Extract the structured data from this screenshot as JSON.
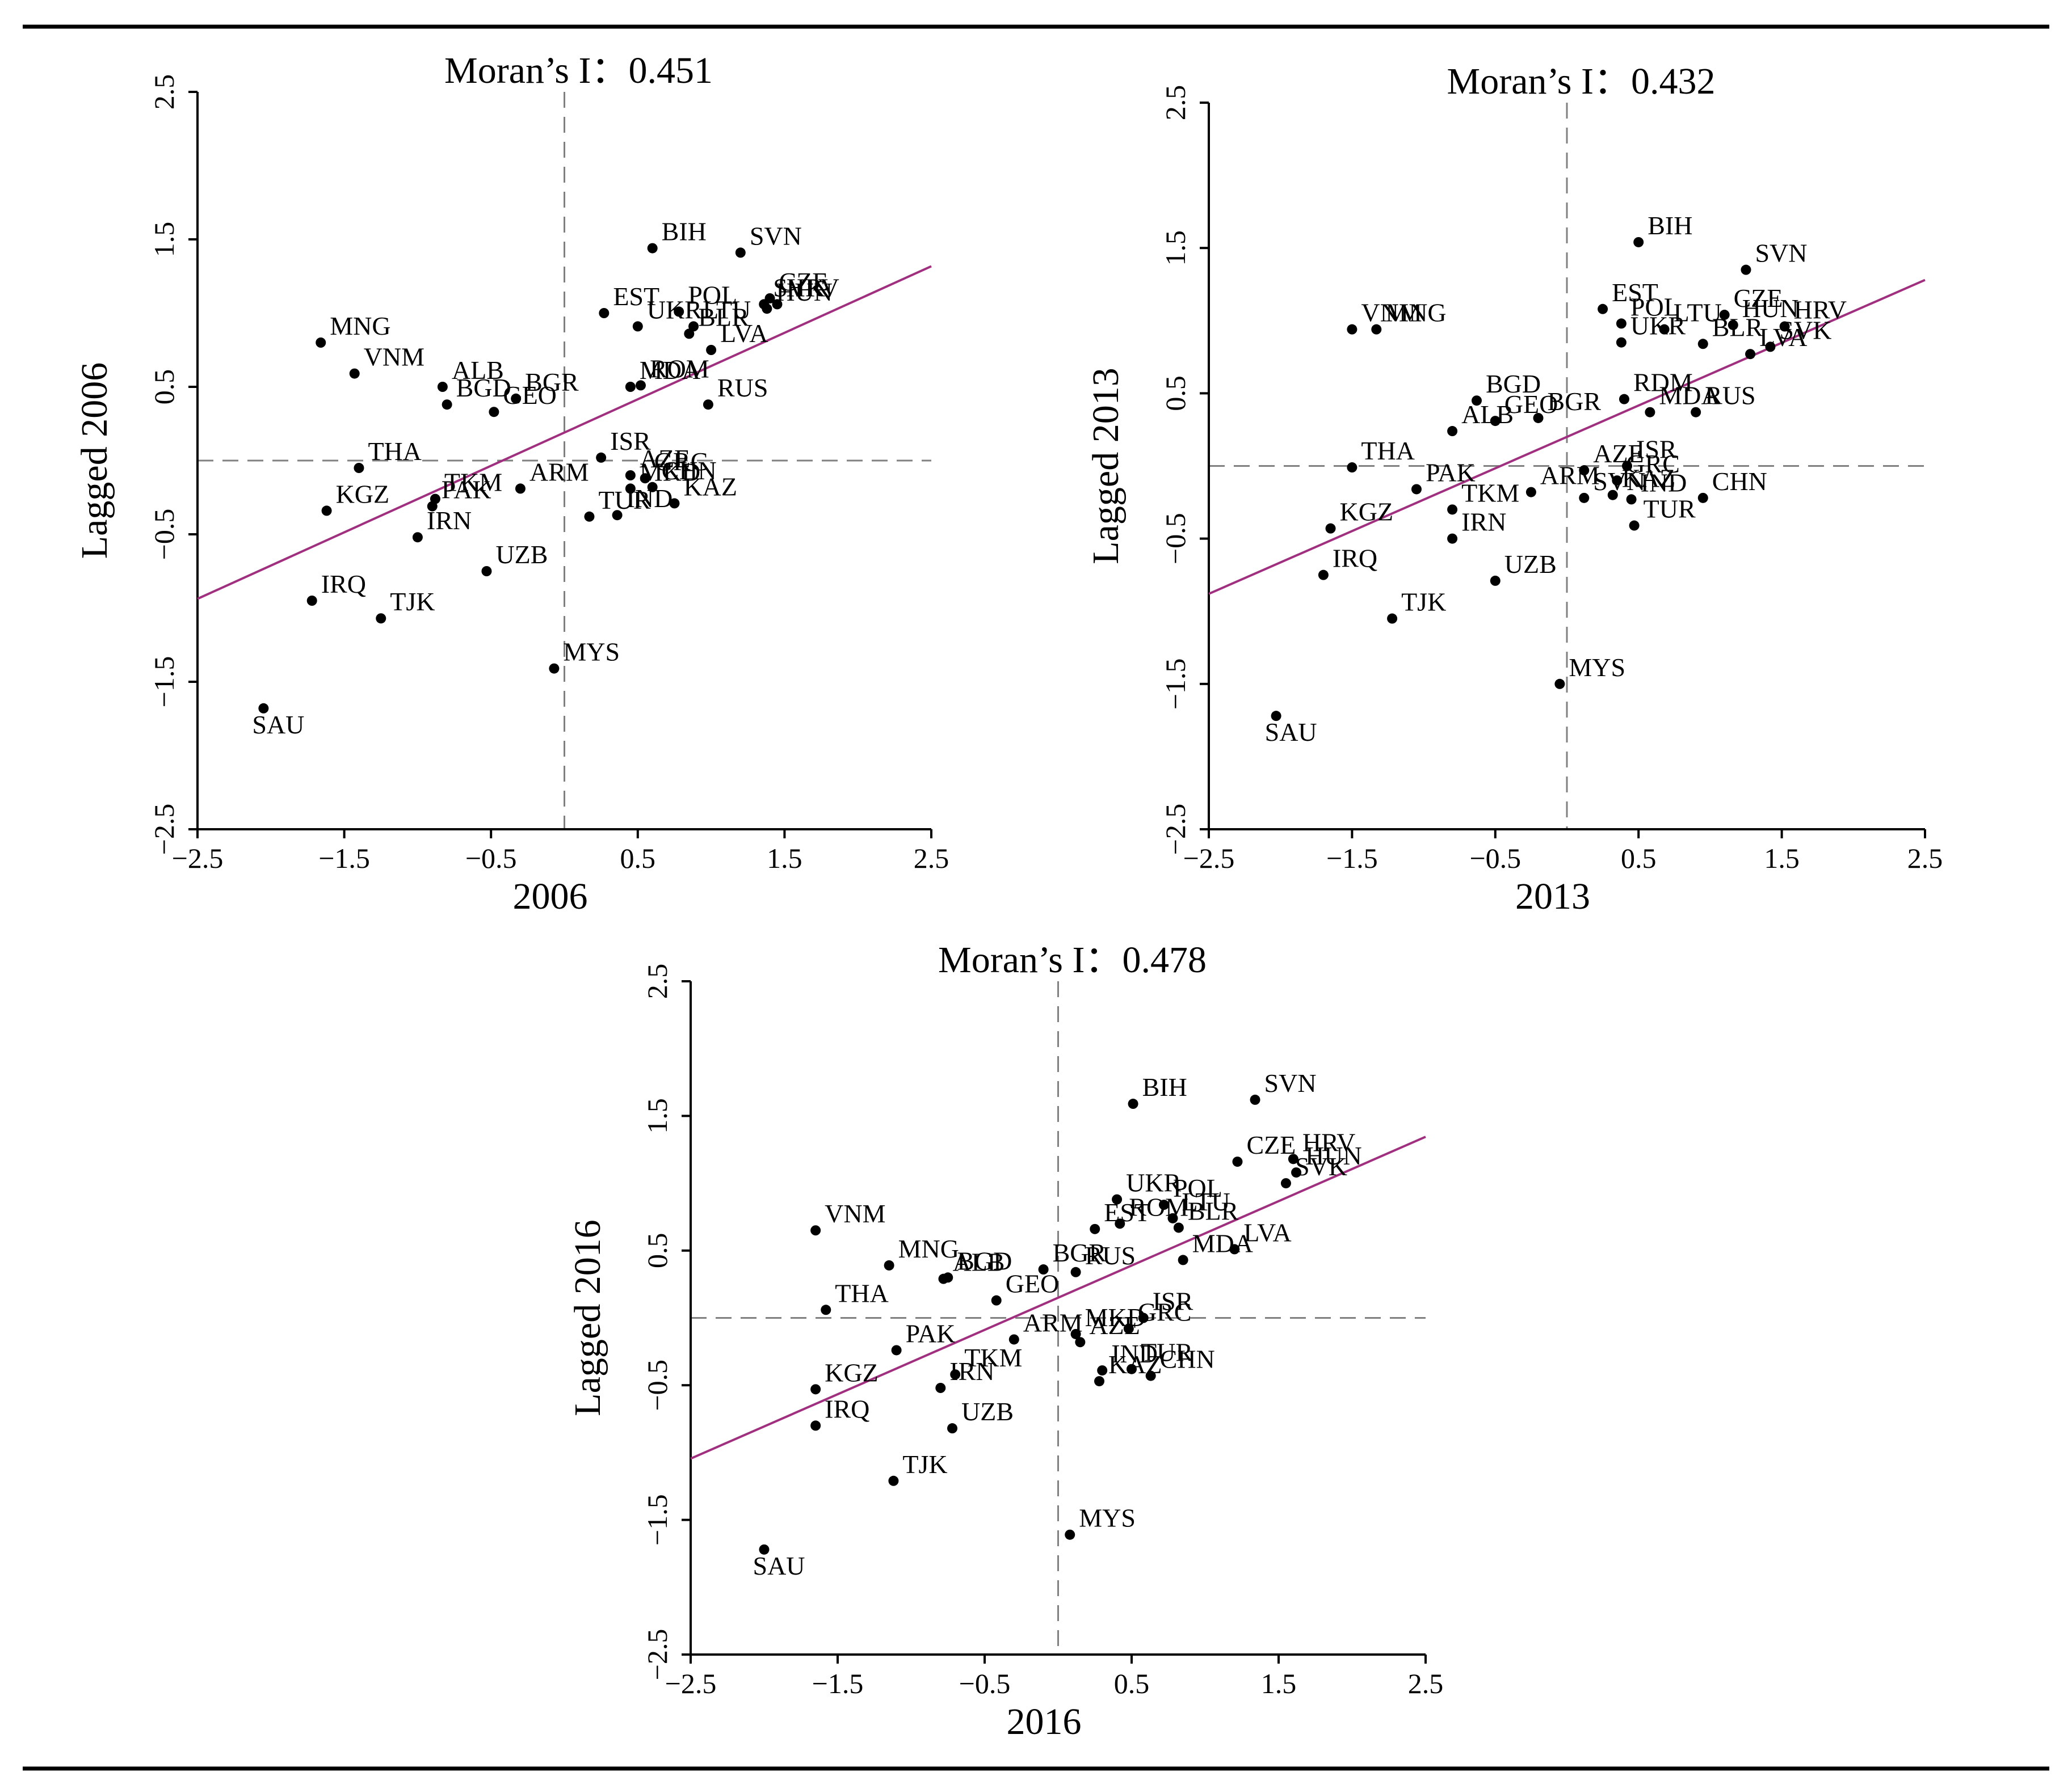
{
  "colors": {
    "axis": "#000000",
    "point": "#000000",
    "fit_line": "#a0307f",
    "mean_line": "#808080",
    "frame_rule": "#000000"
  },
  "chart_data": [
    {
      "type": "scatter",
      "id": "p2006",
      "title": "Moran’s I：0.451",
      "xlabel": "2006",
      "ylabel": "Lagged 2006",
      "xlim": [
        -2.5,
        2.5
      ],
      "ylim": [
        -2.5,
        2.5
      ],
      "xticks": [
        -2.5,
        -1.5,
        -0.5,
        0.5,
        1.5,
        2.5
      ],
      "yticks": [
        -2.5,
        -1.5,
        -0.5,
        0.5,
        1.5,
        2.5
      ],
      "xtick_labels": [
        "−2.5",
        "−1.5",
        "−0.5",
        "0.5",
        "1.5",
        "2.5"
      ],
      "ytick_labels": [
        "−2.5",
        "−1.5",
        "−0.5",
        "0.5",
        "1.5",
        "2.5"
      ],
      "fit_line": {
        "slope": 0.451,
        "intercept": 0.19
      },
      "points": [
        {
          "label": "BIH",
          "x": 0.6,
          "y": 1.44
        },
        {
          "label": "SVN",
          "x": 1.2,
          "y": 1.41
        },
        {
          "label": "POL",
          "x": 0.78,
          "y": 1.01
        },
        {
          "label": "SVK",
          "x": 1.36,
          "y": 1.06
        },
        {
          "label": "CZE",
          "x": 1.4,
          "y": 1.1
        },
        {
          "label": "UKR",
          "x": 0.5,
          "y": 0.91
        },
        {
          "label": "EST",
          "x": 0.27,
          "y": 1.0
        },
        {
          "label": "LTU",
          "x": 0.88,
          "y": 0.91
        },
        {
          "label": "HRV",
          "x": 1.45,
          "y": 1.06
        },
        {
          "label": "HUN",
          "x": 1.38,
          "y": 1.03
        },
        {
          "label": "BLR",
          "x": 0.85,
          "y": 0.86
        },
        {
          "label": "LVA",
          "x": 1.0,
          "y": 0.75
        },
        {
          "label": "MDA",
          "x": 0.45,
          "y": 0.5
        },
        {
          "label": "ROM",
          "x": 0.52,
          "y": 0.51
        },
        {
          "label": "RUS",
          "x": 0.98,
          "y": 0.38
        },
        {
          "label": "MNG",
          "x": -1.66,
          "y": 0.8
        },
        {
          "label": "VNM",
          "x": -1.43,
          "y": 0.59
        },
        {
          "label": "ALB",
          "x": -0.83,
          "y": 0.5
        },
        {
          "label": "BGR",
          "x": -0.33,
          "y": 0.42
        },
        {
          "label": "BGD",
          "x": -0.8,
          "y": 0.38
        },
        {
          "label": "GEO",
          "x": -0.48,
          "y": 0.33
        },
        {
          "label": "ISR",
          "x": 0.25,
          "y": 0.02
        },
        {
          "label": "AZE",
          "x": 0.45,
          "y": -0.1
        },
        {
          "label": "GRC",
          "x": 0.55,
          "y": -0.12
        },
        {
          "label": "MKD",
          "x": 0.45,
          "y": -0.19
        },
        {
          "label": "CHN",
          "x": 0.6,
          "y": -0.18
        },
        {
          "label": "KAZ",
          "x": 0.75,
          "y": -0.29
        },
        {
          "label": "THA",
          "x": -1.4,
          "y": -0.05
        },
        {
          "label": "TKM",
          "x": -0.88,
          "y": -0.26
        },
        {
          "label": "PAK",
          "x": -0.9,
          "y": -0.31
        },
        {
          "label": "ARM",
          "x": -0.3,
          "y": -0.19
        },
        {
          "label": "TUR",
          "x": 0.17,
          "y": -0.38
        },
        {
          "label": "IND",
          "x": 0.36,
          "y": -0.37
        },
        {
          "label": "KGZ",
          "x": -1.62,
          "y": -0.34
        },
        {
          "label": "IRN",
          "x": -1.0,
          "y": -0.52
        },
        {
          "label": "UZB",
          "x": -0.53,
          "y": -0.75
        },
        {
          "label": "IRQ",
          "x": -1.72,
          "y": -0.95
        },
        {
          "label": "TJK",
          "x": -1.25,
          "y": -1.07
        },
        {
          "label": "MYS",
          "x": -0.07,
          "y": -1.41
        },
        {
          "label": "SAU",
          "x": -2.05,
          "y": -1.68
        }
      ]
    },
    {
      "type": "scatter",
      "id": "p2013",
      "title": "Moran’s I：0.432",
      "xlabel": "2013",
      "ylabel": "Lagged 2013",
      "xlim": [
        -2.5,
        2.5
      ],
      "ylim": [
        -2.5,
        2.5
      ],
      "xticks": [
        -2.5,
        -1.5,
        -0.5,
        0.5,
        1.5,
        2.5
      ],
      "yticks": [
        -2.5,
        -1.5,
        -0.5,
        0.5,
        1.5,
        2.5
      ],
      "xtick_labels": [
        "−2.5",
        "−1.5",
        "−0.5",
        "0.5",
        "1.5",
        "2.5"
      ],
      "ytick_labels": [
        "−2.5",
        "−1.5",
        "−0.5",
        "0.5",
        "1.5",
        "2.5"
      ],
      "fit_line": {
        "slope": 0.432,
        "intercept": 0.2
      },
      "points": [
        {
          "label": "BIH",
          "x": 0.5,
          "y": 1.54
        },
        {
          "label": "SVN",
          "x": 1.25,
          "y": 1.35
        },
        {
          "label": "CZE",
          "x": 1.1,
          "y": 1.04
        },
        {
          "label": "EST",
          "x": 0.25,
          "y": 1.08
        },
        {
          "label": "LTU",
          "x": 0.68,
          "y": 0.94
        },
        {
          "label": "POL",
          "x": 0.38,
          "y": 0.98
        },
        {
          "label": "HUN",
          "x": 1.16,
          "y": 0.97
        },
        {
          "label": "HRV",
          "x": 1.52,
          "y": 0.96
        },
        {
          "label": "SVK",
          "x": 1.42,
          "y": 0.82
        },
        {
          "label": "LVA",
          "x": 1.28,
          "y": 0.77
        },
        {
          "label": "BLR",
          "x": 0.95,
          "y": 0.84
        },
        {
          "label": "UKR",
          "x": 0.38,
          "y": 0.85
        },
        {
          "label": "VNM",
          "x": -1.5,
          "y": 0.94
        },
        {
          "label": "MNG",
          "x": -1.33,
          "y": 0.94
        },
        {
          "label": "RDM",
          "x": 0.4,
          "y": 0.46
        },
        {
          "label": "MDA",
          "x": 0.58,
          "y": 0.37
        },
        {
          "label": "RUS",
          "x": 0.9,
          "y": 0.37
        },
        {
          "label": "BGD",
          "x": -0.63,
          "y": 0.45
        },
        {
          "label": "BGR",
          "x": -0.2,
          "y": 0.33
        },
        {
          "label": "ALB",
          "x": -0.8,
          "y": 0.24
        },
        {
          "label": "GEO",
          "x": -0.5,
          "y": 0.31
        },
        {
          "label": "AZE",
          "x": 0.12,
          "y": -0.03
        },
        {
          "label": "ISR",
          "x": 0.42,
          "y": 0.0
        },
        {
          "label": "GRC",
          "x": 0.35,
          "y": -0.1
        },
        {
          "label": "IND",
          "x": 0.45,
          "y": -0.23
        },
        {
          "label": "CHN",
          "x": 0.95,
          "y": -0.22
        },
        {
          "label": "SVN",
          "x": 0.12,
          "y": -0.22
        },
        {
          "label": "KAZ",
          "x": 0.32,
          "y": -0.2
        },
        {
          "label": "TUR",
          "x": 0.47,
          "y": -0.41
        },
        {
          "label": "THA",
          "x": -1.5,
          "y": -0.01
        },
        {
          "label": "PAK",
          "x": -1.05,
          "y": -0.16
        },
        {
          "label": "ARM",
          "x": -0.25,
          "y": -0.18
        },
        {
          "label": "TKM",
          "x": -0.8,
          "y": -0.3
        },
        {
          "label": "KGZ",
          "x": -1.65,
          "y": -0.43
        },
        {
          "label": "IRN",
          "x": -0.8,
          "y": -0.5
        },
        {
          "label": "UZB",
          "x": -0.5,
          "y": -0.79
        },
        {
          "label": "IRQ",
          "x": -1.7,
          "y": -0.75
        },
        {
          "label": "TJK",
          "x": -1.22,
          "y": -1.05
        },
        {
          "label": "MYS",
          "x": -0.05,
          "y": -1.5
        },
        {
          "label": "SAU",
          "x": -2.03,
          "y": -1.72
        }
      ]
    },
    {
      "type": "scatter",
      "id": "p2016",
      "title": "Moran’s I：0.478",
      "xlabel": "2016",
      "ylabel": "Lagged 2016",
      "xlim": [
        -2.5,
        2.5
      ],
      "ylim": [
        -2.5,
        2.5
      ],
      "xticks": [
        -2.5,
        -1.5,
        -0.5,
        0.5,
        1.5,
        2.5
      ],
      "yticks": [
        -2.5,
        -1.5,
        -0.5,
        0.5,
        1.5,
        2.5
      ],
      "xtick_labels": [
        "−2.5",
        "−1.5",
        "−0.5",
        "0.5",
        "1.5",
        "2.5"
      ],
      "ytick_labels": [
        "−2.5",
        "−1.5",
        "−0.5",
        "0.5",
        "1.5",
        "2.5"
      ],
      "fit_line": {
        "slope": 0.478,
        "intercept": 0.15
      },
      "points": [
        {
          "label": "SVN",
          "x": 1.34,
          "y": 1.62
        },
        {
          "label": "BIH",
          "x": 0.51,
          "y": 1.59
        },
        {
          "label": "CZE",
          "x": 1.22,
          "y": 1.16
        },
        {
          "label": "HRV",
          "x": 1.6,
          "y": 1.18
        },
        {
          "label": "HUN",
          "x": 1.62,
          "y": 1.08
        },
        {
          "label": "SVK",
          "x": 1.55,
          "y": 1.0
        },
        {
          "label": "UKR",
          "x": 0.4,
          "y": 0.88
        },
        {
          "label": "POL",
          "x": 0.72,
          "y": 0.84
        },
        {
          "label": "LTU",
          "x": 0.78,
          "y": 0.74
        },
        {
          "label": "BLR",
          "x": 0.82,
          "y": 0.67
        },
        {
          "label": "EST",
          "x": 0.25,
          "y": 0.66
        },
        {
          "label": "ROM",
          "x": 0.42,
          "y": 0.7
        },
        {
          "label": "LVA",
          "x": 1.2,
          "y": 0.51
        },
        {
          "label": "MDA",
          "x": 0.85,
          "y": 0.43
        },
        {
          "label": "VNM",
          "x": -1.65,
          "y": 0.65
        },
        {
          "label": "MNG",
          "x": -1.15,
          "y": 0.39
        },
        {
          "label": "BGD",
          "x": -0.75,
          "y": 0.3
        },
        {
          "label": "BGR",
          "x": -0.1,
          "y": 0.36
        },
        {
          "label": "RUS",
          "x": 0.12,
          "y": 0.34
        },
        {
          "label": "ALB",
          "x": -0.78,
          "y": 0.29
        },
        {
          "label": "GEO",
          "x": -0.42,
          "y": 0.13
        },
        {
          "label": "THA",
          "x": -1.58,
          "y": 0.06
        },
        {
          "label": "GRC",
          "x": 0.48,
          "y": -0.08
        },
        {
          "label": "ISR",
          "x": 0.58,
          "y": 0.0
        },
        {
          "label": "MKD",
          "x": 0.12,
          "y": -0.12
        },
        {
          "label": "AZE",
          "x": 0.15,
          "y": -0.18
        },
        {
          "label": "TUR",
          "x": 0.5,
          "y": -0.38
        },
        {
          "label": "IND",
          "x": 0.3,
          "y": -0.39
        },
        {
          "label": "KAZ",
          "x": 0.28,
          "y": -0.47
        },
        {
          "label": "CHN",
          "x": 0.63,
          "y": -0.43
        },
        {
          "label": "PAK",
          "x": -1.1,
          "y": -0.24
        },
        {
          "label": "ARM",
          "x": -0.3,
          "y": -0.16
        },
        {
          "label": "TKM",
          "x": -0.7,
          "y": -0.42
        },
        {
          "label": "IRN",
          "x": -0.8,
          "y": -0.52
        },
        {
          "label": "KGZ",
          "x": -1.65,
          "y": -0.53
        },
        {
          "label": "IRQ",
          "x": -1.65,
          "y": -0.8
        },
        {
          "label": "UZB",
          "x": -0.72,
          "y": -0.82
        },
        {
          "label": "TJK",
          "x": -1.12,
          "y": -1.21
        },
        {
          "label": "MYS",
          "x": 0.08,
          "y": -1.61
        },
        {
          "label": "SAU",
          "x": -2.0,
          "y": -1.72
        }
      ]
    }
  ]
}
